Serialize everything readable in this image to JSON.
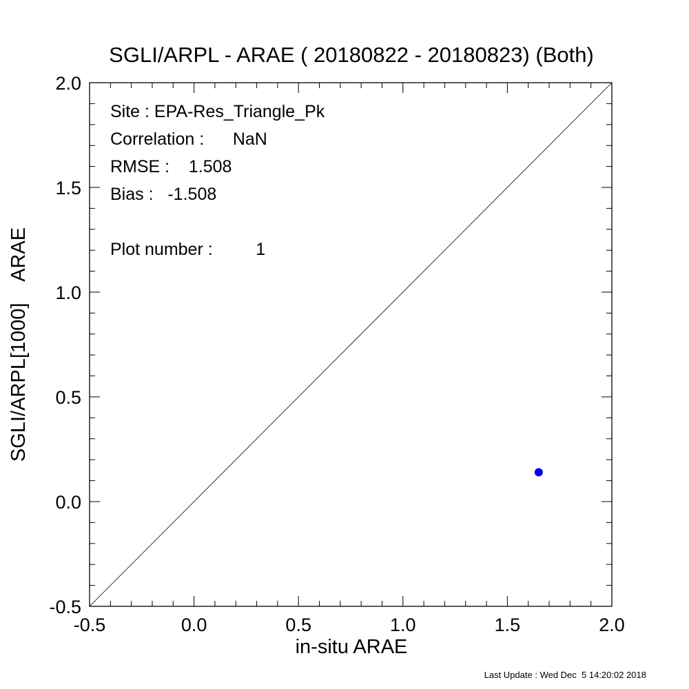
{
  "chart_data": {
    "type": "scatter",
    "title": "SGLI/ARPL - ARAE ( 20180822 - 20180823) (Both)",
    "xlabel": "in-situ ARAE",
    "ylabel": "SGLI/ARPL[1000]    ARAE",
    "xlim": [
      -0.5,
      2.0
    ],
    "ylim": [
      -0.5,
      2.0
    ],
    "x_ticks": [
      "-0.5",
      "0.0",
      "0.5",
      "1.0",
      "1.5",
      "2.0"
    ],
    "y_ticks": [
      "-0.5",
      "0.0",
      "0.5",
      "1.0",
      "1.5",
      "2.0"
    ],
    "grid": false,
    "reference_line": "1:1",
    "series": [
      {
        "points": [
          {
            "x": 1.65,
            "y": 0.14
          }
        ],
        "color": "#0000ee"
      }
    ],
    "annotations": {
      "site": "Site : EPA-Res_Triangle_Pk",
      "correlation": "Correlation :      NaN",
      "rmse": "RMSE :    1.508",
      "bias": "Bias :   -1.508",
      "plot_number": "Plot number :         1"
    }
  },
  "footer": "Last Update : Wed Dec  5 14:20:02 2018",
  "colors": {
    "point": "#0000ee",
    "axis": "#000000"
  }
}
